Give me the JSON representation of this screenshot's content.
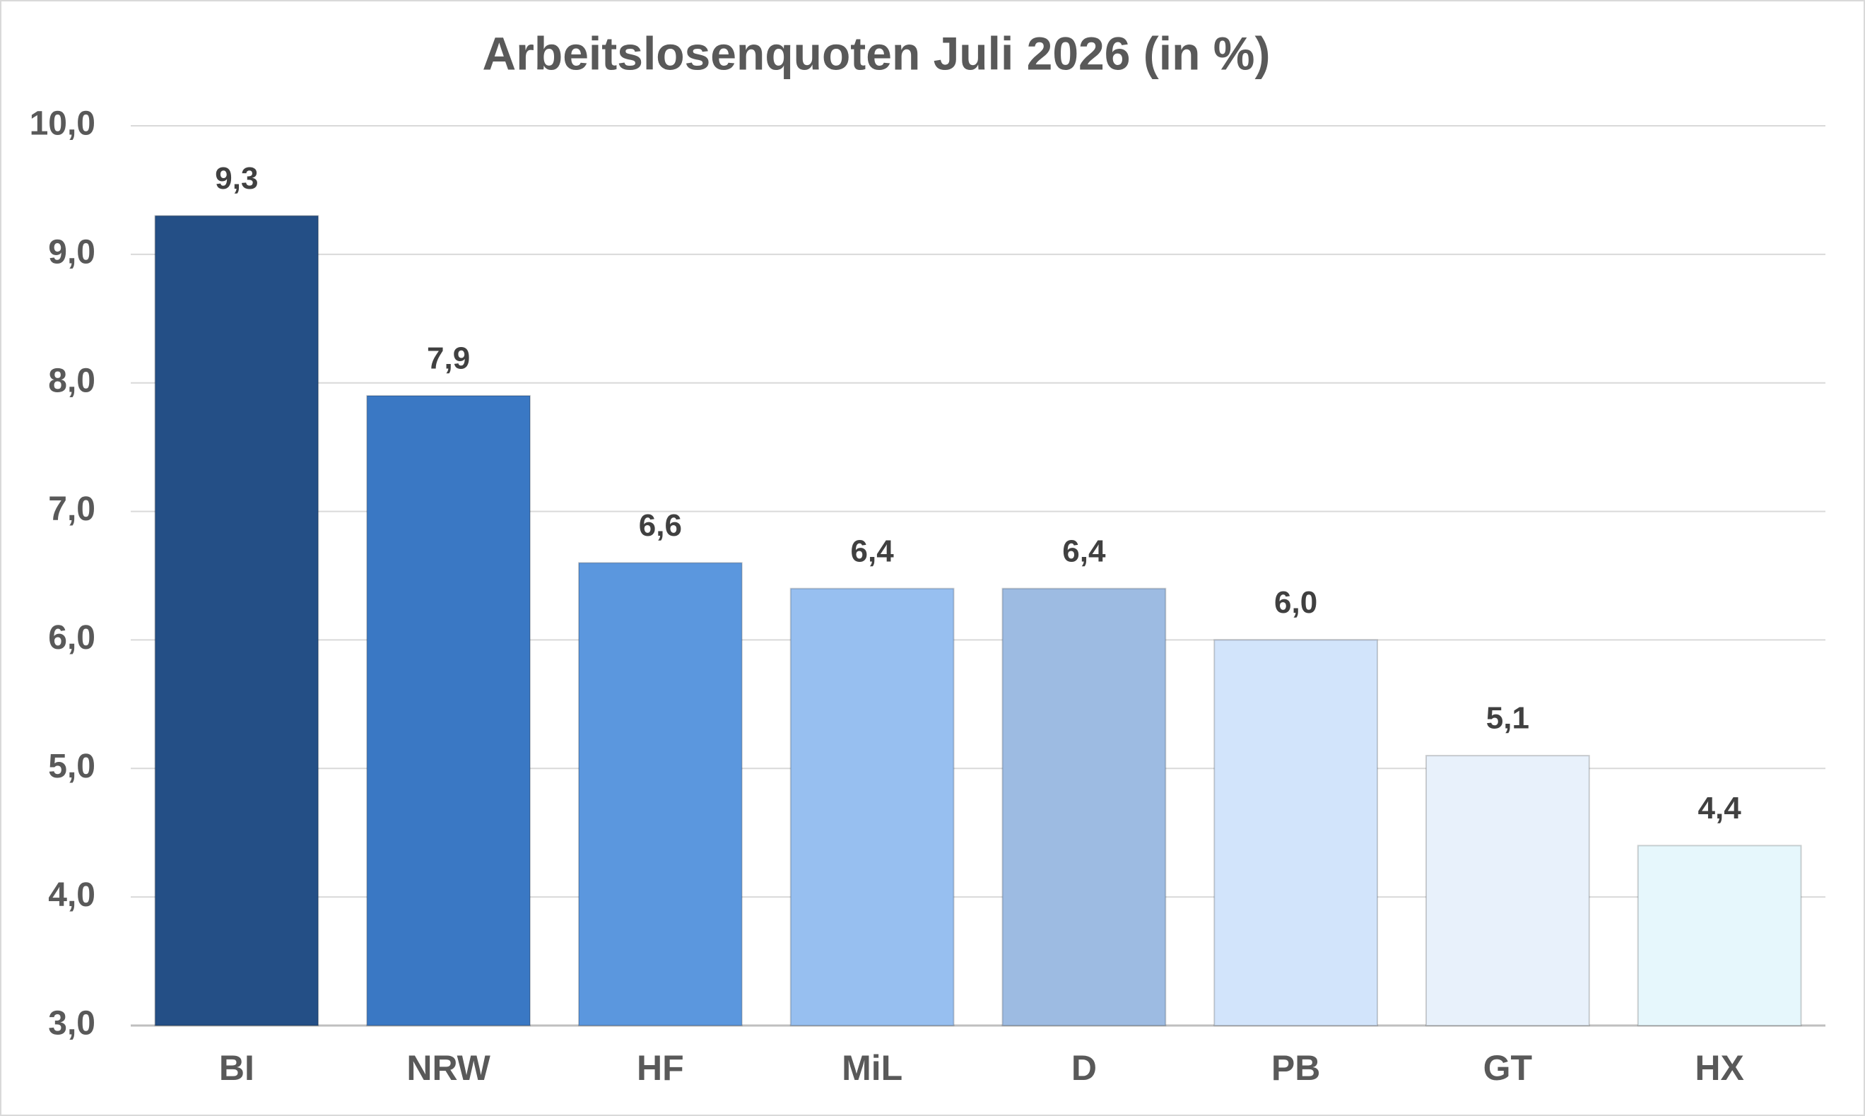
{
  "chart_data": {
    "type": "bar",
    "title": "Arbeitslosenquoten Juli 2026 (in %)",
    "categories": [
      "BI",
      "NRW",
      "HF",
      "MiL",
      "D",
      "PB",
      "GT",
      "HX"
    ],
    "values": [
      9.3,
      7.9,
      6.6,
      6.4,
      6.4,
      6.0,
      5.1,
      4.4
    ],
    "value_labels": [
      "9,3",
      "7,9",
      "6,6",
      "6,4",
      "6,4",
      "6,0",
      "5,1",
      "4,4"
    ],
    "colors": [
      "#244f86",
      "#3a78c4",
      "#5b97de",
      "#97bff0",
      "#9dbbe2",
      "#d2e4fb",
      "#e8f1fb",
      "#e6f7fc"
    ],
    "ylim": [
      3,
      10
    ],
    "yticks": [
      {
        "value": 3,
        "label": "3,0"
      },
      {
        "value": 4,
        "label": "4,0"
      },
      {
        "value": 5,
        "label": "5,0"
      },
      {
        "value": 6,
        "label": "6,0"
      },
      {
        "value": 7,
        "label": "7,0"
      },
      {
        "value": 8,
        "label": "8,0"
      },
      {
        "value": 9,
        "label": "9,0"
      },
      {
        "value": 10,
        "label": "10,0"
      }
    ],
    "grid": true
  }
}
